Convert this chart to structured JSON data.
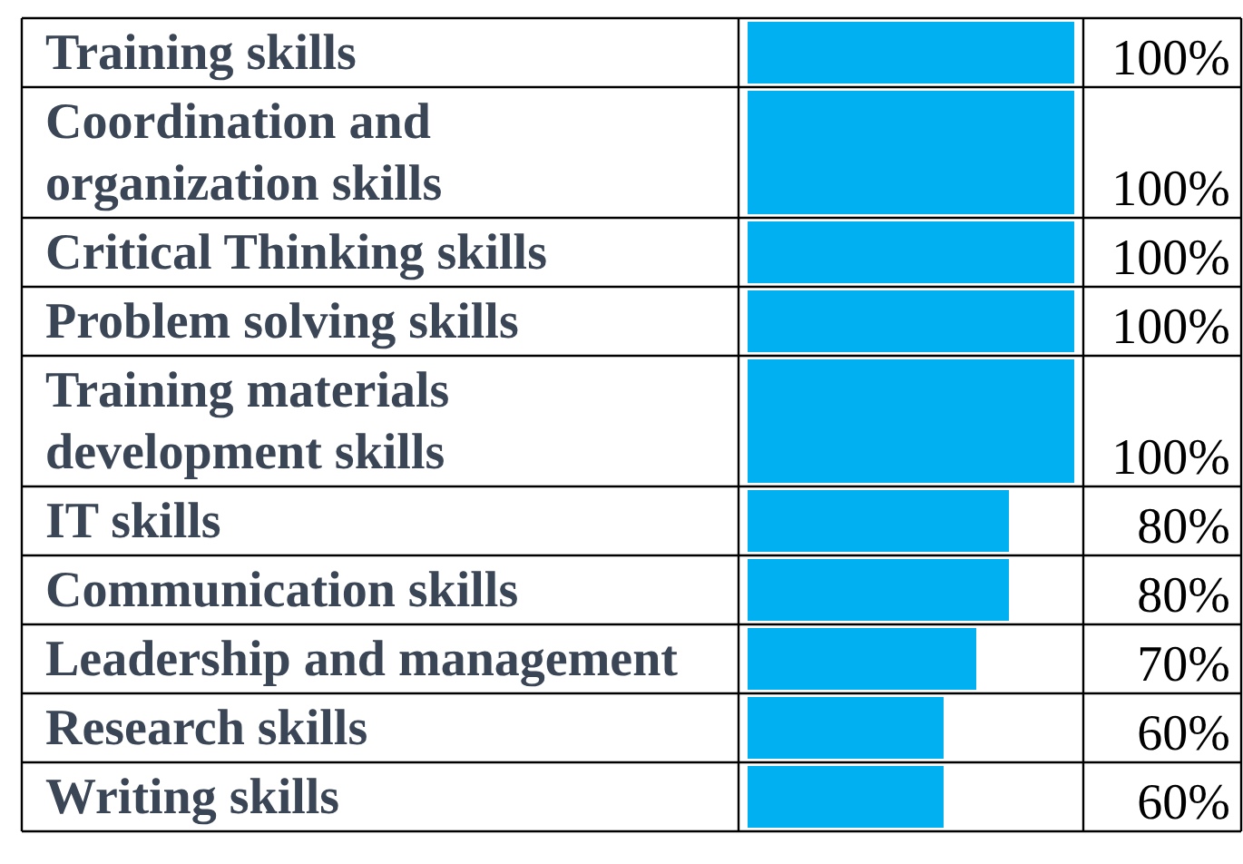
{
  "chart_data": {
    "type": "bar",
    "orientation": "horizontal",
    "categories": [
      "Training skills",
      "Coordination and organization skills",
      "Critical Thinking skills",
      "Problem solving skills",
      "Training materials development skills",
      "IT skills",
      "Communication skills",
      "Leadership and management",
      "Research skills",
      "Writing skills"
    ],
    "values": [
      100,
      100,
      100,
      100,
      100,
      80,
      80,
      70,
      60,
      60
    ],
    "value_labels": [
      "100%",
      "100%",
      "100%",
      "100%",
      "100%",
      "80%",
      "80%",
      "70%",
      "60%",
      "60%"
    ],
    "color": "#00b0f0"
  }
}
